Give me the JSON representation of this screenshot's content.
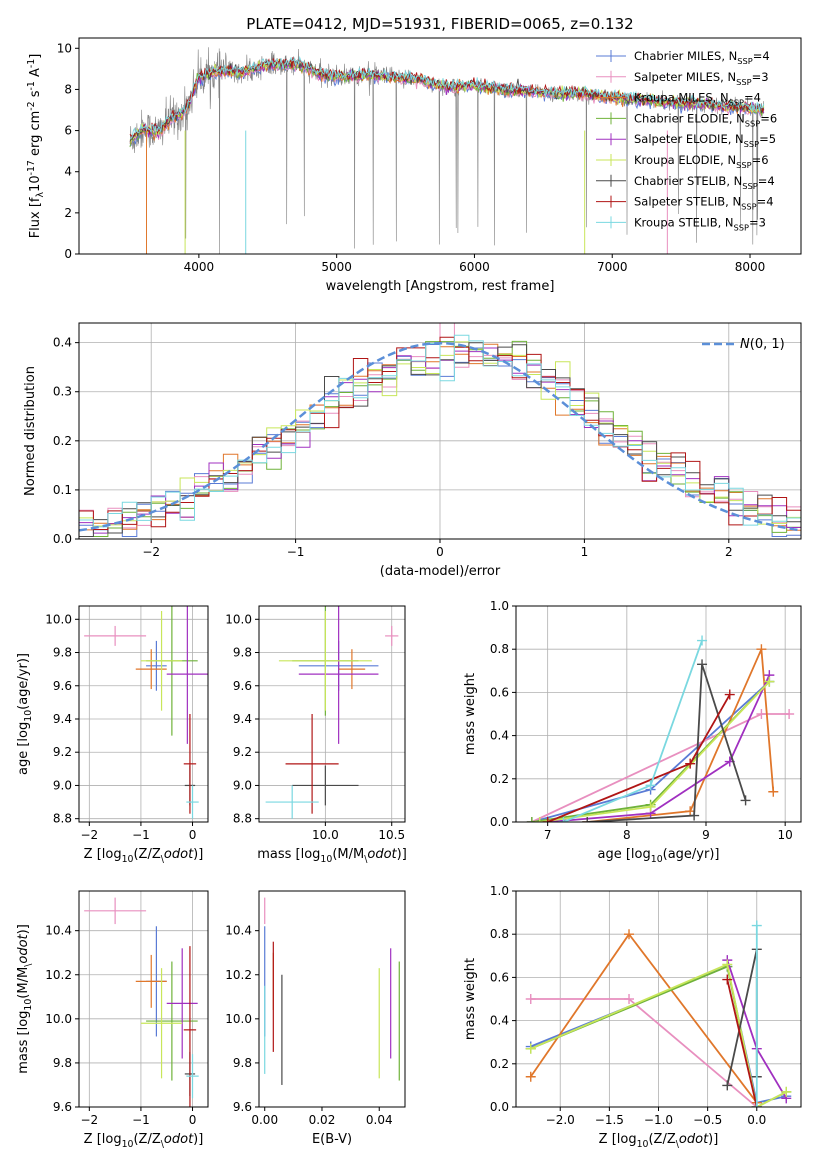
{
  "title": "PLATE=0412, MJD=51931, FIBERID=0065, z=0.132",
  "series": [
    {
      "name": "Chabrier MILES, N$_{SSP}$=4",
      "color": "#5a7bd5"
    },
    {
      "name": "Salpeter MILES, N$_{SSP}$=3",
      "color": "#e88fbf"
    },
    {
      "name": "Kroupa MILES, N$_{SSP}$=4",
      "color": "#e0772b"
    },
    {
      "name": "Chabrier ELODIE, N$_{SSP}$=6",
      "color": "#6fb23a"
    },
    {
      "name": "Salpeter ELODIE, N$_{SSP}$=5",
      "color": "#a030c0"
    },
    {
      "name": "Kroupa ELODIE, N$_{SSP}$=6",
      "color": "#c8e65a"
    },
    {
      "name": "Chabrier STELIB, N$_{SSP}$=4",
      "color": "#4a4a4a"
    },
    {
      "name": "Salpeter STELIB, N$_{SSP}$=4",
      "color": "#b01515"
    },
    {
      "name": "Kroupa STELIB, N$_{SSP}$=3",
      "color": "#7ad8e0"
    }
  ],
  "chart_data": [
    {
      "type": "line",
      "panel": "spectrum",
      "xlabel": "wavelength [Angstrom, rest frame]",
      "ylabel": "Flux [f$_{\\lambda}$10$^{-17}$ erg cm$^{-2}$ s$^{-1}$ A$^{-1}$]",
      "xlim": [
        3130,
        8370
      ],
      "ylim": [
        0,
        10.5
      ],
      "xticks": [
        4000,
        5000,
        6000,
        7000,
        8000
      ],
      "yticks": [
        0,
        2,
        4,
        6,
        8,
        10
      ],
      "data_color": "#808080",
      "continuum": {
        "x": [
          3500,
          3600,
          3700,
          3800,
          3900,
          4000,
          4100,
          4200,
          4300,
          4400,
          4500,
          4600,
          4700,
          4800,
          4900,
          5000,
          5200,
          5400,
          5600,
          5800,
          6000,
          6200,
          6400,
          6600,
          6800,
          7000,
          7200,
          7400,
          7600,
          7800,
          8000,
          8100
        ],
        "y": [
          5.5,
          6.1,
          5.9,
          6.6,
          6.9,
          8.6,
          8.8,
          8.9,
          8.8,
          9.0,
          9.2,
          9.2,
          9.2,
          9.0,
          8.7,
          8.6,
          8.7,
          8.6,
          8.5,
          8.1,
          8.2,
          8.0,
          7.9,
          7.8,
          7.8,
          7.6,
          7.5,
          7.4,
          7.3,
          7.2,
          7.1,
          7.0
        ]
      },
      "legend_location": "upper right"
    },
    {
      "type": "line",
      "panel": "residual-histogram",
      "xlabel": "(data-model)/error",
      "ylabel": "Normed distribution",
      "xlim": [
        -2.5,
        2.5
      ],
      "ylim": [
        0,
        0.44
      ],
      "xticks": [
        -2,
        -1,
        0,
        1,
        2
      ],
      "yticks": [
        0.0,
        0.1,
        0.2,
        0.3,
        0.4
      ],
      "grid": true,
      "reference_curve": {
        "name": "$\\mathcal{N}(0, 1)$",
        "color": "#5b8fd8",
        "mean": 0,
        "sigma": 1
      },
      "legend_location": "upper right"
    },
    {
      "type": "scatter",
      "panel": "age-vs-metallicity",
      "xlabel": "Z [log$_{10}$(Z/Z$_\\odot$)]",
      "ylabel": "age  [log$_{10}$(age/yr)]",
      "xlim": [
        -2.2,
        0.3
      ],
      "ylim": [
        8.78,
        10.08
      ],
      "xticks": [
        -2,
        -1,
        0
      ],
      "yticks": [
        8.8,
        9.0,
        9.2,
        9.4,
        9.6,
        9.8,
        10.0
      ],
      "grid": true,
      "points": [
        {
          "series": 0,
          "x": -0.7,
          "y": 9.72,
          "xerr": 0.2,
          "yerr": 0.15
        },
        {
          "series": 1,
          "x": -1.5,
          "y": 9.9,
          "xerr": 0.6,
          "yerr": 0.06
        },
        {
          "series": 2,
          "x": -0.8,
          "y": 9.7,
          "xerr": 0.3,
          "yerr": 0.12
        },
        {
          "series": 3,
          "x": -0.4,
          "y": 9.75,
          "xerr": 0.5,
          "yerr": 0.45
        },
        {
          "series": 4,
          "x": -0.1,
          "y": 9.67,
          "xerr": 0.4,
          "yerr": 0.42
        },
        {
          "series": 5,
          "x": -0.6,
          "y": 9.75,
          "xerr": 0.4,
          "yerr": 0.3
        },
        {
          "series": 6,
          "x": -0.05,
          "y": 9.0,
          "xerr": 0.1,
          "yerr": 0.12
        },
        {
          "series": 7,
          "x": -0.05,
          "y": 9.13,
          "xerr": 0.12,
          "yerr": 0.3
        },
        {
          "series": 8,
          "x": 0.0,
          "y": 8.9,
          "xerr": 0.12,
          "yerr": 0.1
        }
      ]
    },
    {
      "type": "scatter",
      "panel": "age-vs-mass",
      "xlabel": "mass [log$_{10}$(M/M$_\\odot$)]",
      "ylabel": "",
      "xlim": [
        9.5,
        10.6
      ],
      "ylim": [
        8.78,
        10.08
      ],
      "xticks": [
        10.0,
        10.5
      ],
      "yticks": [
        8.8,
        9.0,
        9.2,
        9.4,
        9.6,
        9.8,
        10.0
      ],
      "grid": true,
      "points": [
        {
          "series": 0,
          "x": 10.1,
          "y": 9.72,
          "xerr": 0.3,
          "yerr": 0.15
        },
        {
          "series": 1,
          "x": 10.5,
          "y": 9.9,
          "xerr": 0.05,
          "yerr": 0.06
        },
        {
          "series": 2,
          "x": 10.2,
          "y": 9.7,
          "xerr": 0.1,
          "yerr": 0.12
        },
        {
          "series": 3,
          "x": 10.0,
          "y": 9.75,
          "xerr": 0.25,
          "yerr": 0.33
        },
        {
          "series": 4,
          "x": 10.1,
          "y": 9.67,
          "xerr": 0.3,
          "yerr": 0.42
        },
        {
          "series": 5,
          "x": 10.0,
          "y": 9.75,
          "xerr": 0.35,
          "yerr": 0.3
        },
        {
          "series": 6,
          "x": 10.0,
          "y": 9.0,
          "xerr": 0.25,
          "yerr": 0.12
        },
        {
          "series": 7,
          "x": 9.9,
          "y": 9.13,
          "xerr": 0.2,
          "yerr": 0.3
        },
        {
          "series": 8,
          "x": 9.75,
          "y": 8.9,
          "xerr": 0.2,
          "yerr": 0.1
        }
      ]
    },
    {
      "type": "line",
      "panel": "mass-weight-vs-age",
      "xlabel": "age  [log$_{10}$(age/yr)]",
      "ylabel": "mass weight",
      "xlim": [
        6.6,
        10.2
      ],
      "ylim": [
        0,
        1.0
      ],
      "xticks": [
        7,
        8,
        9,
        10
      ],
      "yticks": [
        0.0,
        0.2,
        0.4,
        0.6,
        0.8,
        1.0
      ],
      "grid": true,
      "lines": [
        {
          "series": 0,
          "x": [
            6.8,
            8.3,
            9.8
          ],
          "y": [
            0.0,
            0.15,
            0.65
          ]
        },
        {
          "series": 1,
          "x": [
            6.8,
            9.7,
            10.05
          ],
          "y": [
            0.0,
            0.5,
            0.5
          ]
        },
        {
          "series": 2,
          "x": [
            7.5,
            8.8,
            9.7,
            9.85
          ],
          "y": [
            0.0,
            0.05,
            0.8,
            0.14
          ]
        },
        {
          "series": 3,
          "x": [
            6.8,
            8.3,
            9.8
          ],
          "y": [
            0.0,
            0.08,
            0.65
          ]
        },
        {
          "series": 4,
          "x": [
            7.0,
            8.3,
            9.3,
            9.8
          ],
          "y": [
            0.0,
            0.04,
            0.28,
            0.68
          ]
        },
        {
          "series": 5,
          "x": [
            6.9,
            8.3,
            9.8
          ],
          "y": [
            0.0,
            0.07,
            0.65
          ]
        },
        {
          "series": 6,
          "x": [
            7.5,
            8.85,
            8.95,
            9.5
          ],
          "y": [
            0.0,
            0.03,
            0.73,
            0.1
          ]
        },
        {
          "series": 7,
          "x": [
            7.0,
            8.8,
            9.3
          ],
          "y": [
            0.0,
            0.27,
            0.59
          ]
        },
        {
          "series": 8,
          "x": [
            7.2,
            8.3,
            8.95
          ],
          "y": [
            0.0,
            0.17,
            0.84
          ]
        }
      ]
    },
    {
      "type": "scatter",
      "panel": "mass-vs-metallicity",
      "xlabel": "Z [log$_{10}$(Z/Z$_\\odot$)]",
      "ylabel": "mass [log$_{10}$(M/M$_\\odot$)]",
      "xlim": [
        -2.2,
        0.3
      ],
      "ylim": [
        9.6,
        10.58
      ],
      "xticks": [
        -2,
        -1,
        0
      ],
      "yticks": [
        9.6,
        9.8,
        10.0,
        10.2,
        10.4
      ],
      "grid": true,
      "points": [
        {
          "series": 0,
          "x": -0.7,
          "y": 10.17,
          "xerr": 0.2,
          "yerr": 0.25
        },
        {
          "series": 1,
          "x": -1.5,
          "y": 10.49,
          "xerr": 0.6,
          "yerr": 0.06
        },
        {
          "series": 2,
          "x": -0.8,
          "y": 10.17,
          "xerr": 0.3,
          "yerr": 0.12
        },
        {
          "series": 3,
          "x": -0.4,
          "y": 9.99,
          "xerr": 0.5,
          "yerr": 0.27
        },
        {
          "series": 4,
          "x": -0.2,
          "y": 10.07,
          "xerr": 0.3,
          "yerr": 0.25
        },
        {
          "series": 5,
          "x": -0.6,
          "y": 9.98,
          "xerr": 0.4,
          "yerr": 0.25
        },
        {
          "series": 6,
          "x": -0.05,
          "y": 9.75,
          "xerr": 0.1,
          "yerr": 0.1
        },
        {
          "series": 7,
          "x": -0.05,
          "y": 9.95,
          "xerr": 0.12,
          "yerr": 0.38
        },
        {
          "series": 8,
          "x": 0.0,
          "y": 9.74,
          "xerr": 0.12,
          "yerr": 0.1
        }
      ]
    },
    {
      "type": "scatter",
      "panel": "mass-vs-extinction",
      "xlabel": "E(B-V)",
      "ylabel": "",
      "xlim": [
        -0.002,
        0.049
      ],
      "ylim": [
        9.6,
        10.58
      ],
      "xticks": [
        0.0,
        0.02,
        0.04
      ],
      "yticks": [
        9.6,
        9.8,
        10.0,
        10.2,
        10.4
      ],
      "grid": false,
      "points": [
        {
          "series": 0,
          "x": 0.0,
          "y": 10.17,
          "yerr": 0.25
        },
        {
          "series": 1,
          "x": 0.0,
          "y": 10.49,
          "yerr": 0.06
        },
        {
          "series": 2,
          "x": 0.003,
          "y": 10.17,
          "yerr": 0.13
        },
        {
          "series": 3,
          "x": 0.047,
          "y": 9.99,
          "yerr": 0.27
        },
        {
          "series": 4,
          "x": 0.044,
          "y": 10.07,
          "yerr": 0.25
        },
        {
          "series": 5,
          "x": 0.04,
          "y": 9.98,
          "yerr": 0.25
        },
        {
          "series": 6,
          "x": 0.006,
          "y": 9.95,
          "yerr": 0.25
        },
        {
          "series": 7,
          "x": 0.003,
          "y": 10.1,
          "yerr": 0.25
        },
        {
          "series": 8,
          "x": 0.0,
          "y": 9.95,
          "yerr": 0.2
        }
      ]
    },
    {
      "type": "line",
      "panel": "mass-weight-vs-metallicity",
      "xlabel": "Z [log$_{10}$(Z/Z$_\\odot$)]",
      "ylabel": "mass weight",
      "xlim": [
        -2.45,
        0.45
      ],
      "ylim": [
        0,
        1.0
      ],
      "xticks": [
        -2.0,
        -1.5,
        -1.0,
        -0.5,
        0.0
      ],
      "yticks": [
        0.0,
        0.2,
        0.4,
        0.6,
        0.8,
        1.0
      ],
      "grid": true,
      "lines": [
        {
          "series": 0,
          "x": [
            -2.3,
            -0.3,
            0.0,
            0.3
          ],
          "y": [
            0.28,
            0.65,
            0.02,
            0.05
          ]
        },
        {
          "series": 1,
          "x": [
            -2.3,
            -1.3,
            0.0
          ],
          "y": [
            0.5,
            0.5,
            0.0
          ]
        },
        {
          "series": 2,
          "x": [
            -2.3,
            -1.3,
            0.0
          ],
          "y": [
            0.14,
            0.8,
            0.02
          ]
        },
        {
          "series": 3,
          "x": [
            -2.3,
            -0.3,
            0.0,
            0.3
          ],
          "y": [
            0.27,
            0.65,
            0.0,
            0.07
          ]
        },
        {
          "series": 4,
          "x": [
            -0.3,
            0.0,
            0.3
          ],
          "y": [
            0.68,
            0.27,
            0.04
          ]
        },
        {
          "series": 5,
          "x": [
            -2.3,
            -0.3,
            0.0,
            0.3
          ],
          "y": [
            0.27,
            0.66,
            0.0,
            0.07
          ]
        },
        {
          "series": 6,
          "x": [
            -0.3,
            0.0,
            0.0
          ],
          "y": [
            0.1,
            0.73,
            0.14
          ]
        },
        {
          "series": 7,
          "x": [
            -0.3,
            0.0
          ],
          "y": [
            0.59,
            0.0
          ]
        },
        {
          "series": 8,
          "x": [
            0.0,
            0.0
          ],
          "y": [
            0.84,
            0.0
          ]
        }
      ]
    }
  ]
}
